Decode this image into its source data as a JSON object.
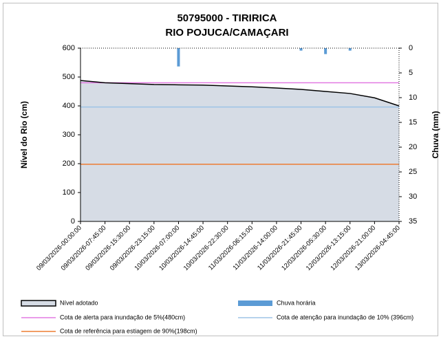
{
  "chart_data": {
    "type": "line",
    "title": [
      "50795000 - TIRIRICA",
      "RIO POJUCA/CAMAÇARI"
    ],
    "y_label": "Nível do Rio (cm)",
    "y2_label": "Chuva (mm)",
    "x": [
      "09/03/2026-00:00:00",
      "09/03/2026-07:45:00",
      "09/03/2026-15:30:00",
      "09/03/2026-23:15:00",
      "10/03/2026-07:00:00",
      "10/03/2026-14:45:00",
      "10/03/2026-22:30:00",
      "11/03/2026-06:15:00",
      "11/03/2026-14:00:00",
      "11/03/2026-21:45:00",
      "12/03/2026-05:30:00",
      "12/03/2026-13:15:00",
      "12/03/2026-21:00:00",
      "13/03/2026-04:45:00"
    ],
    "series": [
      {
        "name": "Nível adotado",
        "color": "#d6dce5",
        "values": [
          488,
          480,
          477,
          474,
          473,
          472,
          469,
          466,
          462,
          457,
          450,
          443,
          428,
          400
        ]
      },
      {
        "name": "Chuva horária",
        "color": "#5b9bd5",
        "axis": "y2",
        "values": [
          null,
          null,
          null,
          null,
          3.7,
          null,
          null,
          null,
          null,
          0.5,
          1.2,
          0.5,
          null,
          null
        ]
      }
    ],
    "reference_lines": [
      {
        "name": "Cota de alerta para inundação de 5%(480cm)",
        "value": 480,
        "color": "#e27ae2"
      },
      {
        "name": "Cota de atenção para inundação de 10% (396cm)",
        "value": 396,
        "color": "#9dc3e6"
      },
      {
        "name": "Cota de referência para estiagem de 90%(198cm)",
        "value": 198,
        "color": "#ed7d31"
      }
    ],
    "ylim": [
      0,
      600
    ],
    "yticks": [
      0,
      100,
      200,
      300,
      400,
      500,
      600
    ],
    "y2lim": [
      0,
      35
    ],
    "y2ticks": [
      0,
      5,
      10,
      15,
      20,
      25,
      30,
      35
    ],
    "y2_inverted": true
  }
}
